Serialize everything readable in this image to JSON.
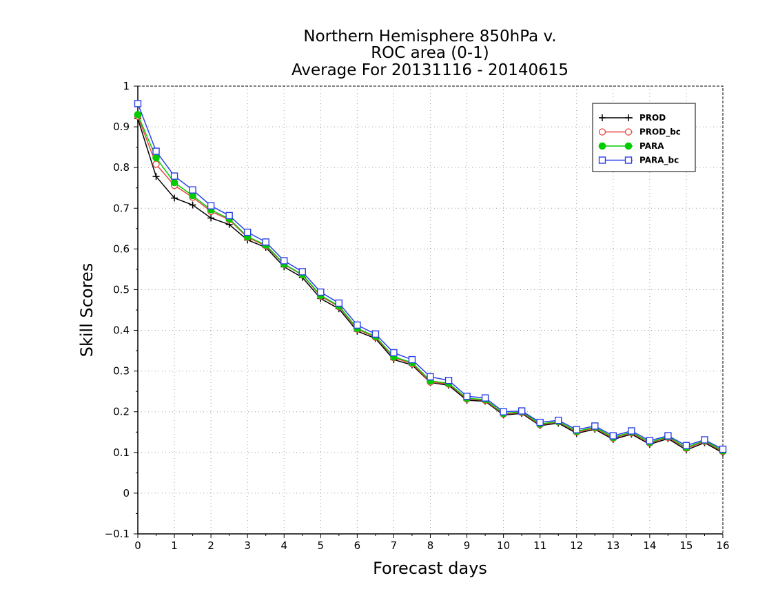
{
  "chart_data": {
    "type": "line",
    "title": [
      "Northern Hemisphere 850hPa v.",
      "ROC area (0-1)",
      "Average For 20131116 - 20140615"
    ],
    "xlabel": "Forecast days",
    "ylabel": "Skill Scores",
    "xlim": [
      0,
      16
    ],
    "ylim": [
      -0.1,
      1
    ],
    "xticks": [
      "0",
      "1",
      "2",
      "3",
      "4",
      "5",
      "6",
      "7",
      "8",
      "9",
      "10",
      "11",
      "12",
      "13",
      "14",
      "15",
      "16"
    ],
    "yticks": [
      "-0.1",
      "0",
      "0.1",
      "0.2",
      "0.3",
      "0.4",
      "0.5",
      "0.6",
      "0.7",
      "0.8",
      "0.9",
      "1"
    ],
    "grid": true,
    "legend_position": "top-right",
    "x": [
      0,
      0.5,
      1,
      1.5,
      2,
      2.5,
      3,
      3.5,
      4,
      4.5,
      5,
      5.5,
      6,
      6.5,
      7,
      7.5,
      8,
      8.5,
      9,
      9.5,
      10,
      10.5,
      11,
      11.5,
      12,
      12.5,
      13,
      13.5,
      14,
      14.5,
      15,
      15.5,
      16
    ],
    "series": [
      {
        "name": "PROD",
        "color": "#000000",
        "marker": "plus",
        "values": [
          0.92,
          0.778,
          0.725,
          0.708,
          0.676,
          0.66,
          0.622,
          0.604,
          0.556,
          0.53,
          0.478,
          0.453,
          0.398,
          0.38,
          0.328,
          0.315,
          0.272,
          0.265,
          0.228,
          0.226,
          0.192,
          0.196,
          0.166,
          0.172,
          0.147,
          0.157,
          0.132,
          0.145,
          0.12,
          0.134,
          0.106,
          0.124,
          0.099
        ]
      },
      {
        "name": "PROD_bc",
        "color": "#e8453c",
        "marker": "circle-open",
        "values": [
          0.926,
          0.808,
          0.756,
          0.727,
          0.692,
          0.672,
          0.628,
          0.608,
          0.562,
          0.536,
          0.484,
          0.458,
          0.403,
          0.383,
          0.333,
          0.318,
          0.273,
          0.268,
          0.231,
          0.228,
          0.194,
          0.198,
          0.168,
          0.175,
          0.15,
          0.16,
          0.135,
          0.148,
          0.123,
          0.137,
          0.11,
          0.127,
          0.102
        ]
      },
      {
        "name": "PARA",
        "color": "#00cc00",
        "marker": "circle-filled",
        "values": [
          0.93,
          0.824,
          0.763,
          0.731,
          0.696,
          0.674,
          0.63,
          0.61,
          0.563,
          0.537,
          0.486,
          0.46,
          0.405,
          0.385,
          0.335,
          0.321,
          0.276,
          0.27,
          0.233,
          0.23,
          0.196,
          0.2,
          0.17,
          0.176,
          0.152,
          0.162,
          0.137,
          0.15,
          0.125,
          0.139,
          0.112,
          0.129,
          0.104
        ]
      },
      {
        "name": "PARA_bc",
        "color": "#2a40e8",
        "marker": "square-open",
        "values": [
          0.957,
          0.84,
          0.779,
          0.745,
          0.706,
          0.682,
          0.641,
          0.617,
          0.571,
          0.544,
          0.494,
          0.467,
          0.413,
          0.391,
          0.345,
          0.328,
          0.286,
          0.277,
          0.238,
          0.234,
          0.2,
          0.202,
          0.174,
          0.179,
          0.156,
          0.165,
          0.141,
          0.153,
          0.129,
          0.141,
          0.117,
          0.131,
          0.108
        ]
      }
    ]
  }
}
